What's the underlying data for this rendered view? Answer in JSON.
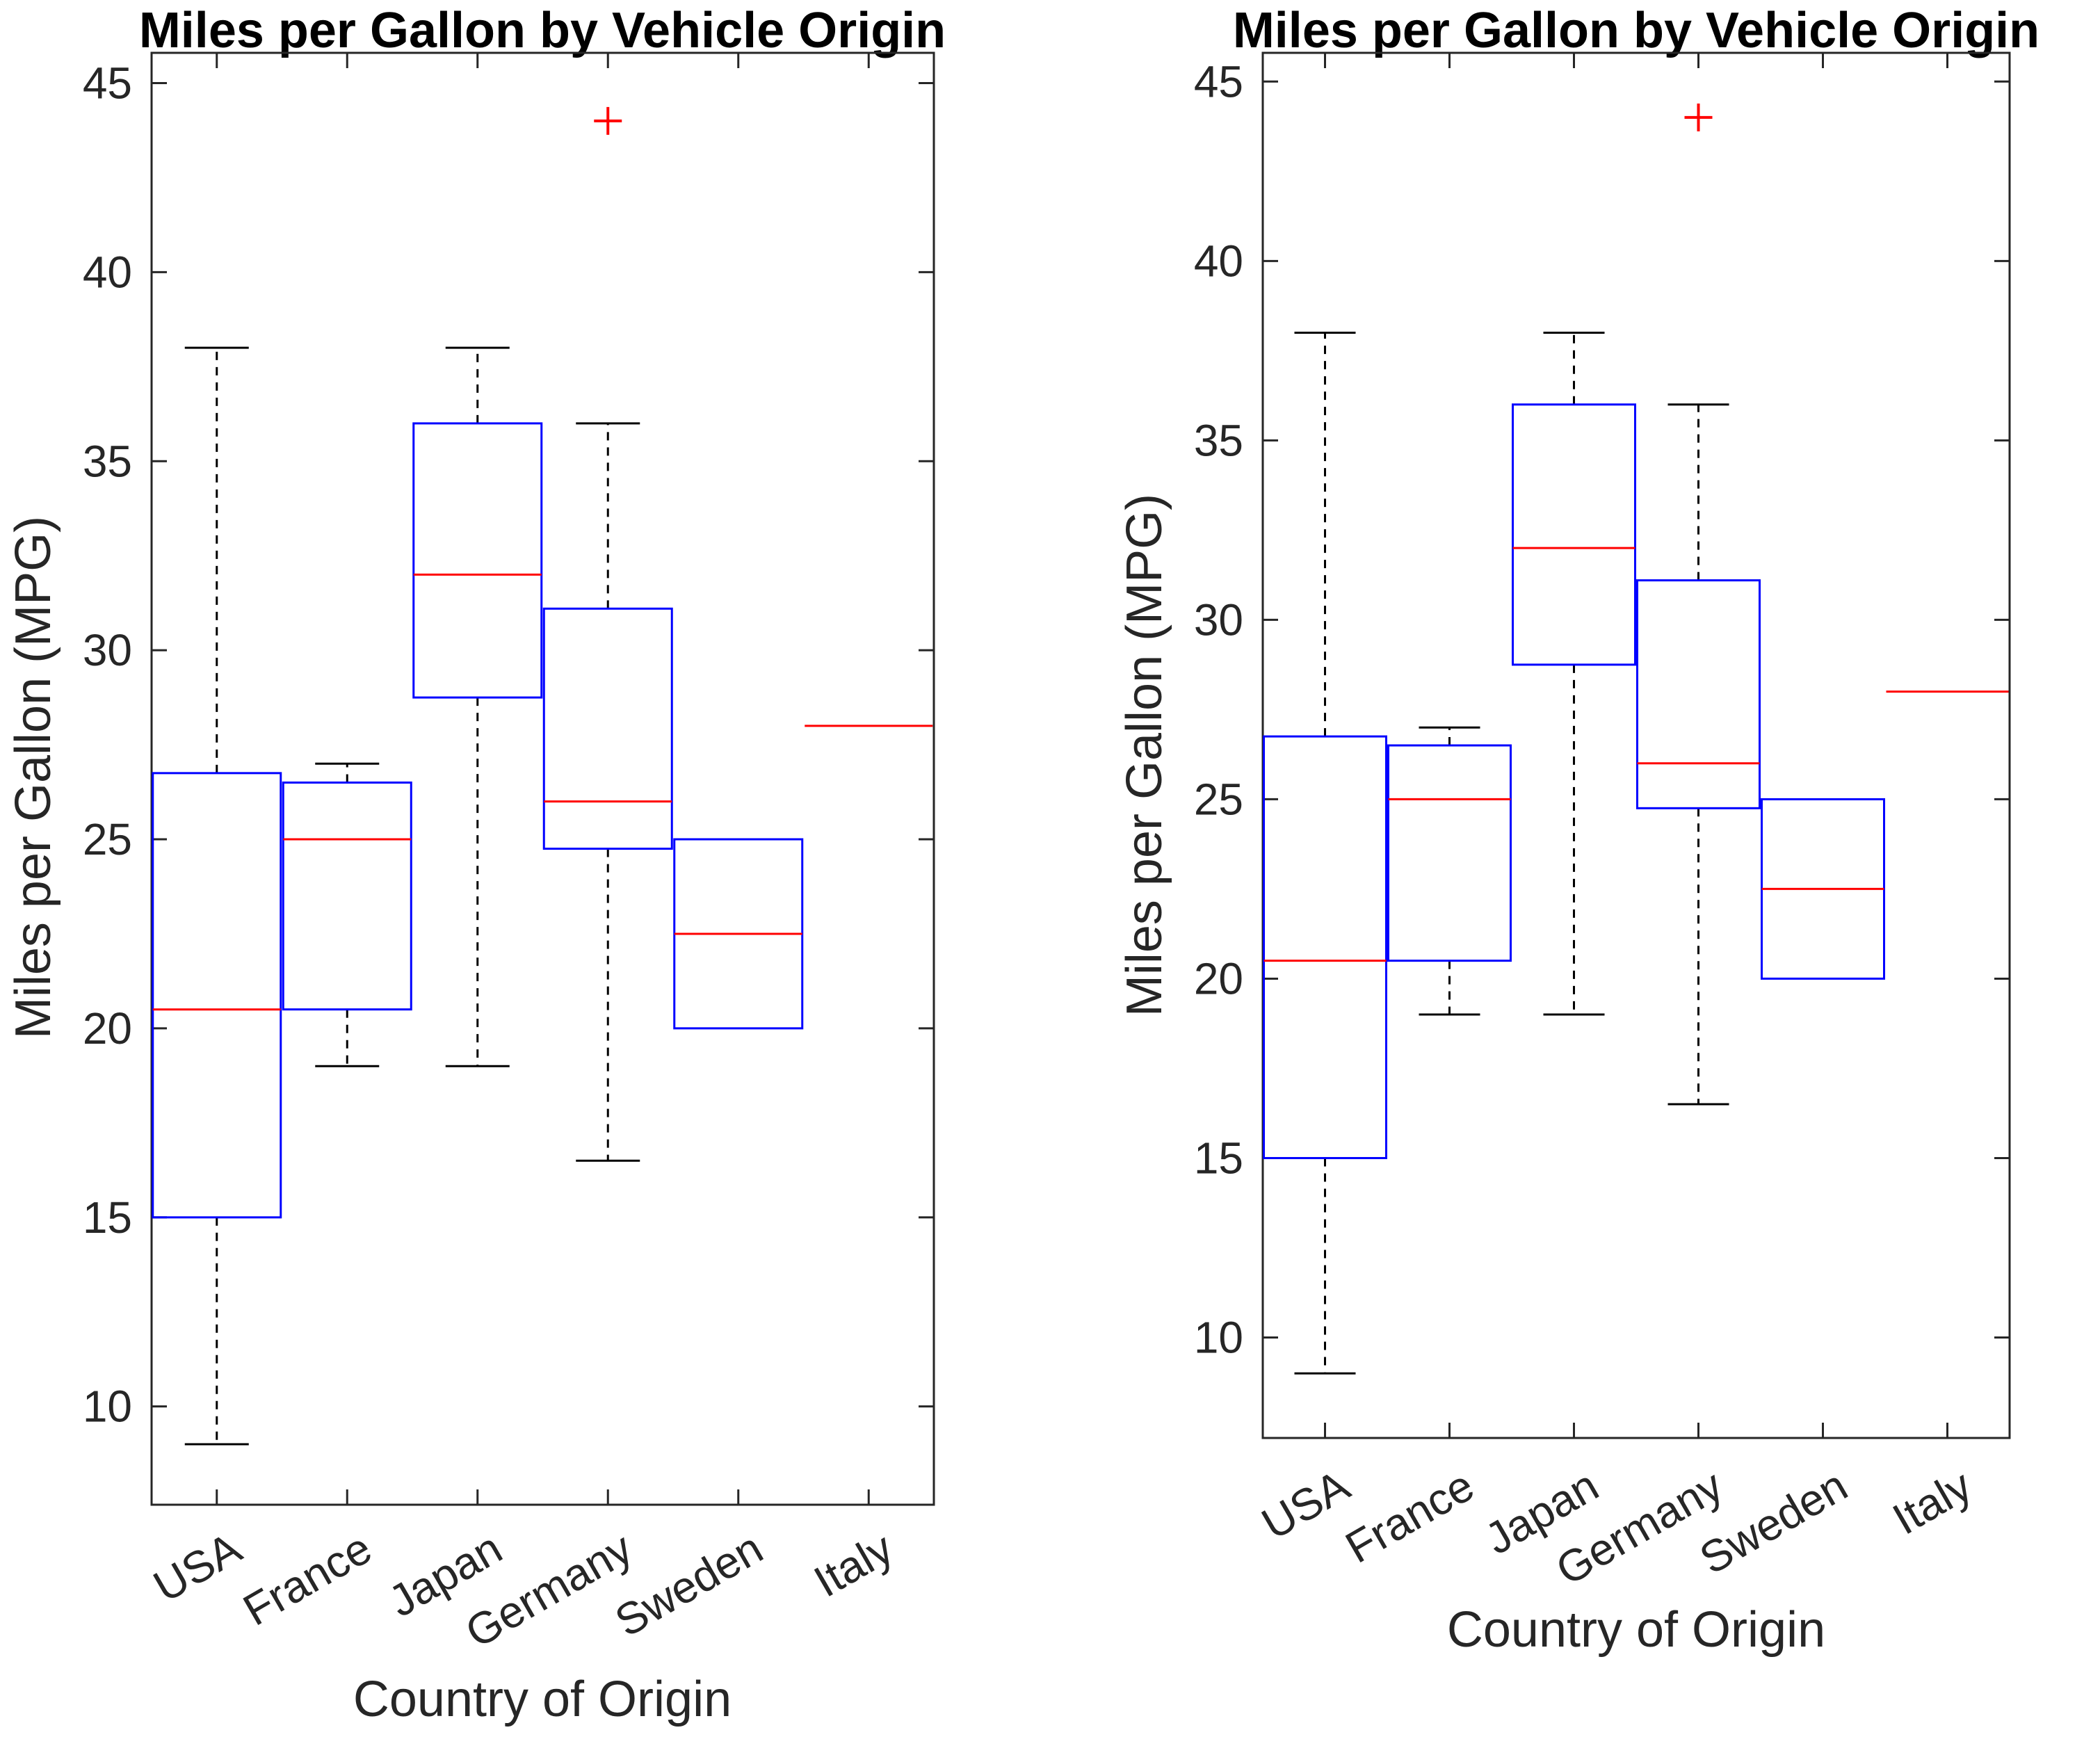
{
  "chart_data": [
    {
      "type": "box",
      "title": "Miles per Gallon by Vehicle Origin",
      "xlabel": "Country of Origin",
      "ylabel": "Miles per Gallon (MPG)",
      "ylim": [
        7.4,
        45.8
      ],
      "yticks": [
        10,
        15,
        20,
        25,
        30,
        35,
        40,
        45
      ],
      "categories": [
        "USA",
        "France",
        "Japan",
        "Germany",
        "Sweden",
        "Italy"
      ],
      "boxes": [
        {
          "category": "USA",
          "whisker_low": 9,
          "q1": 15,
          "median": 20.5,
          "q3": 26.75,
          "whisker_high": 38,
          "outliers": []
        },
        {
          "category": "France",
          "whisker_low": 19,
          "q1": 20.5,
          "median": 25,
          "q3": 26.5,
          "whisker_high": 27,
          "outliers": []
        },
        {
          "category": "Japan",
          "whisker_low": 19,
          "q1": 28.75,
          "median": 32,
          "q3": 36,
          "whisker_high": 38,
          "outliers": []
        },
        {
          "category": "Germany",
          "whisker_low": 16.5,
          "q1": 24.75,
          "median": 26,
          "q3": 31.1,
          "whisker_high": 36,
          "outliers": [
            44
          ]
        },
        {
          "category": "Sweden",
          "whisker_low": 20,
          "q1": 20,
          "median": 22.5,
          "q3": 25,
          "whisker_high": 25,
          "outliers": []
        },
        {
          "category": "Italy",
          "whisker_low": 28,
          "q1": 28,
          "median": 28,
          "q3": 28,
          "whisker_high": 28,
          "outliers": []
        }
      ],
      "colors": {
        "box": "#0000ff",
        "median": "#ff0000",
        "whisker": "#000000",
        "outlier": "#ff0000",
        "axis": "#262626"
      }
    },
    {
      "type": "box",
      "title": "Miles per Gallon by Vehicle Origin",
      "xlabel": "Country of Origin",
      "ylabel": "Miles per Gallon (MPG)",
      "ylim": [
        7.2,
        45.8
      ],
      "yticks": [
        10,
        15,
        20,
        25,
        30,
        35,
        40,
        45
      ],
      "categories": [
        "USA",
        "France",
        "Japan",
        "Germany",
        "Sweden",
        "Italy"
      ],
      "boxes": [
        {
          "category": "USA",
          "whisker_low": 9,
          "q1": 15,
          "median": 20.5,
          "q3": 26.75,
          "whisker_high": 38,
          "outliers": []
        },
        {
          "category": "France",
          "whisker_low": 19,
          "q1": 20.5,
          "median": 25,
          "q3": 26.5,
          "whisker_high": 27,
          "outliers": []
        },
        {
          "category": "Japan",
          "whisker_low": 19,
          "q1": 28.75,
          "median": 32,
          "q3": 36,
          "whisker_high": 38,
          "outliers": []
        },
        {
          "category": "Germany",
          "whisker_low": 16.5,
          "q1": 24.75,
          "median": 26,
          "q3": 31.1,
          "whisker_high": 36,
          "outliers": [
            44
          ]
        },
        {
          "category": "Sweden",
          "whisker_low": 20,
          "q1": 20,
          "median": 22.5,
          "q3": 25,
          "whisker_high": 25,
          "outliers": []
        },
        {
          "category": "Italy",
          "whisker_low": 28,
          "q1": 28,
          "median": 28,
          "q3": 28,
          "whisker_high": 28,
          "outliers": []
        }
      ],
      "colors": {
        "box": "#0000ff",
        "median": "#ff0000",
        "whisker": "#000000",
        "outlier": "#ff0000",
        "axis": "#262626"
      }
    }
  ]
}
